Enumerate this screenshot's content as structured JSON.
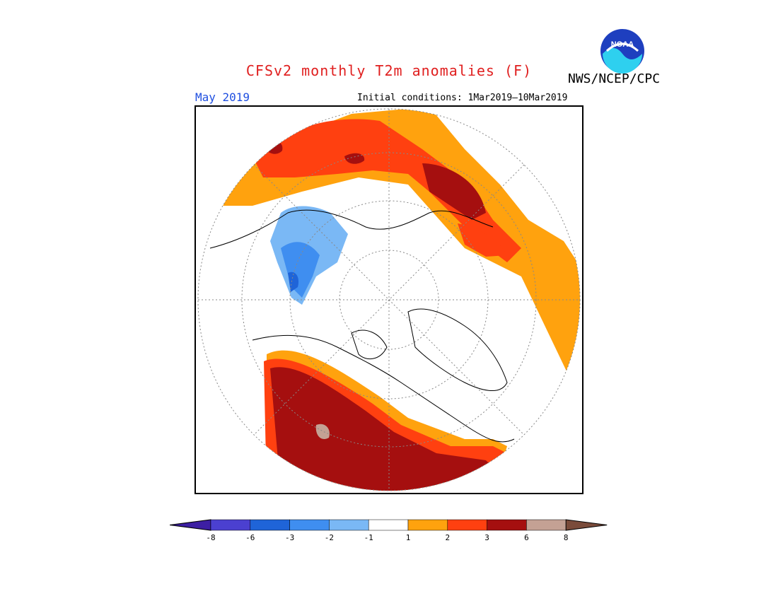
{
  "header": {
    "title": "CFSv2 monthly T2m anomalies (F)",
    "agency": "NWS/NCEP/CPC",
    "logo_text": "NOAA",
    "month": "May 2019",
    "initial_conditions": "Initial conditions: 1Mar2019–10Mar2019"
  },
  "map": {
    "projection": "polar stereographic (north)",
    "gridlines": "dotted",
    "colors": {
      "land_outline": "#000000",
      "grid": "#888888",
      "neutral": "#ffffff"
    }
  },
  "legend": {
    "labels": [
      "-8",
      "-6",
      "-3",
      "-2",
      "-1",
      "1",
      "2",
      "3",
      "6",
      "8"
    ],
    "bins": [
      {
        "color": "#3d1fa3",
        "label": "< -8"
      },
      {
        "color": "#4b40d0",
        "label": "-8 to -6"
      },
      {
        "color": "#1f64d8",
        "label": "-6 to -3"
      },
      {
        "color": "#3f8ef0",
        "label": "-3 to -2"
      },
      {
        "color": "#7ab8f5",
        "label": "-2 to -1"
      },
      {
        "color": "#ffffff",
        "label": "-1 to 1"
      },
      {
        "color": "#ffa20e",
        "label": "1 to 2"
      },
      {
        "color": "#ff4010",
        "label": "2 to 3"
      },
      {
        "color": "#a50f0f",
        "label": "3 to 6"
      },
      {
        "color": "#c4a194",
        "label": "6 to 8"
      },
      {
        "color": "#7a4b3a",
        "label": "> 8"
      }
    ]
  }
}
